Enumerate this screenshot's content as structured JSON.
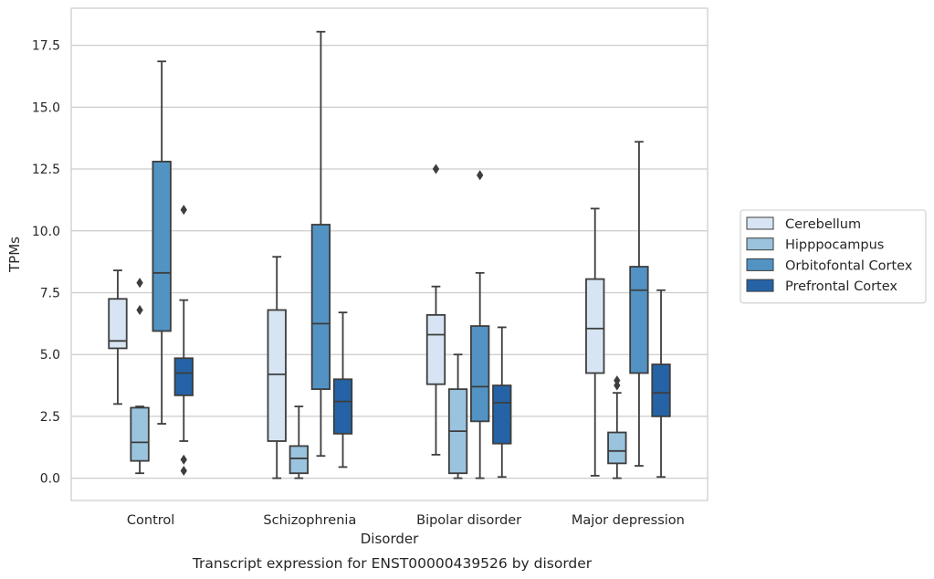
{
  "chart_data": {
    "type": "boxplot",
    "title": "",
    "caption": "Transcript expression for ENST00000439526 by disorder",
    "xlabel": "Disorder",
    "ylabel": "TPMs",
    "ylim": [
      -0.9,
      19.0
    ],
    "yticks": [
      0.0,
      2.5,
      5.0,
      7.5,
      10.0,
      12.5,
      15.0,
      17.5
    ],
    "ytick_labels": [
      "0.0",
      "2.5",
      "5.0",
      "7.5",
      "10.0",
      "12.5",
      "15.0",
      "17.5"
    ],
    "grid": "horizontal",
    "legend_position": "right",
    "categories": [
      "Control",
      "Schizophrenia",
      "Bipolar disorder",
      "Major depression"
    ],
    "series": [
      {
        "name": "Cerebellum",
        "color": "#d6e4f3",
        "boxes": [
          {
            "whisker_low": 3.0,
            "q1": 5.25,
            "median": 5.55,
            "q3": 7.25,
            "whisker_high": 8.4,
            "outliers": []
          },
          {
            "whisker_low": 0.0,
            "q1": 1.5,
            "median": 4.2,
            "q3": 6.8,
            "whisker_high": 8.95,
            "outliers": []
          },
          {
            "whisker_low": 0.95,
            "q1": 3.8,
            "median": 5.8,
            "q3": 6.6,
            "whisker_high": 7.75,
            "outliers": [
              12.5
            ]
          },
          {
            "whisker_low": 0.1,
            "q1": 4.25,
            "median": 6.05,
            "q3": 8.05,
            "whisker_high": 10.9,
            "outliers": []
          }
        ]
      },
      {
        "name": "Hipppocampus",
        "color": "#9ac3de",
        "boxes": [
          {
            "whisker_low": 0.2,
            "q1": 0.7,
            "median": 1.45,
            "q3": 2.85,
            "whisker_high": 2.9,
            "outliers": [
              6.8,
              7.9
            ]
          },
          {
            "whisker_low": 0.0,
            "q1": 0.2,
            "median": 0.8,
            "q3": 1.3,
            "whisker_high": 2.9,
            "outliers": []
          },
          {
            "whisker_low": 0.0,
            "q1": 0.2,
            "median": 1.9,
            "q3": 3.6,
            "whisker_high": 5.0,
            "outliers": []
          },
          {
            "whisker_low": 0.0,
            "q1": 0.6,
            "median": 1.1,
            "q3": 1.85,
            "whisker_high": 3.45,
            "outliers": [
              3.75,
              3.95
            ]
          }
        ]
      },
      {
        "name": "Orbitofontal Cortex",
        "color": "#5293c4",
        "boxes": [
          {
            "whisker_low": 2.2,
            "q1": 5.95,
            "median": 8.3,
            "q3": 12.8,
            "whisker_high": 16.85,
            "outliers": []
          },
          {
            "whisker_low": 0.9,
            "q1": 3.6,
            "median": 6.25,
            "q3": 10.25,
            "whisker_high": 18.05,
            "outliers": []
          },
          {
            "whisker_low": 0.0,
            "q1": 2.3,
            "median": 3.7,
            "q3": 6.15,
            "whisker_high": 8.3,
            "outliers": [
              12.25
            ]
          },
          {
            "whisker_low": 0.5,
            "q1": 4.25,
            "median": 7.6,
            "q3": 8.55,
            "whisker_high": 13.6,
            "outliers": []
          }
        ]
      },
      {
        "name": "Prefrontal Cortex",
        "color": "#2563a6",
        "boxes": [
          {
            "whisker_low": 1.5,
            "q1": 3.35,
            "median": 4.25,
            "q3": 4.85,
            "whisker_high": 7.2,
            "outliers": [
              0.3,
              0.75,
              10.85
            ]
          },
          {
            "whisker_low": 0.45,
            "q1": 1.8,
            "median": 3.1,
            "q3": 4.0,
            "whisker_high": 6.7,
            "outliers": []
          },
          {
            "whisker_low": 0.05,
            "q1": 1.4,
            "median": 3.05,
            "q3": 3.75,
            "whisker_high": 6.1,
            "outliers": []
          },
          {
            "whisker_low": 0.05,
            "q1": 2.5,
            "median": 3.45,
            "q3": 4.6,
            "whisker_high": 7.6,
            "outliers": []
          }
        ]
      }
    ]
  }
}
